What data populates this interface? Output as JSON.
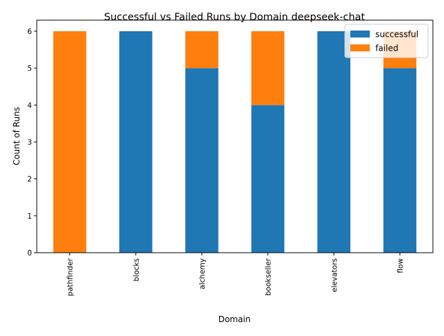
{
  "chart_data": {
    "type": "bar",
    "stacked": true,
    "title": "Successful vs Failed Runs by Domain deepseek-chat",
    "xlabel": "Domain",
    "ylabel": "Count of Runs",
    "categories": [
      "pathfinder",
      "blocks",
      "alchemy",
      "bookseller",
      "elevators",
      "flow"
    ],
    "series": [
      {
        "name": "successful",
        "values": [
          0,
          6,
          5,
          4,
          6,
          5
        ],
        "color": "#1f77b4"
      },
      {
        "name": "failed",
        "values": [
          6,
          0,
          1,
          2,
          0,
          1
        ],
        "color": "#ff7f0e"
      }
    ],
    "ylim": [
      0,
      6.3
    ],
    "yticks": [
      0,
      1,
      2,
      3,
      4,
      5,
      6
    ],
    "grid": false,
    "legend_position": "top-right"
  }
}
